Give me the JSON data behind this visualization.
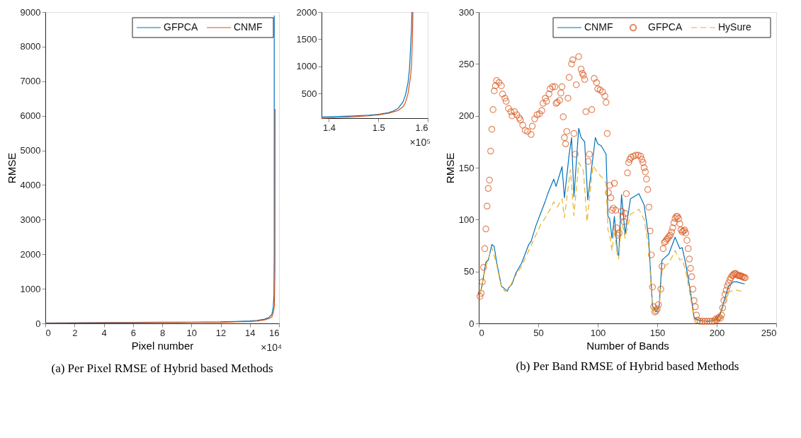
{
  "chart_data": [
    {
      "type": "line",
      "title": "(a) Per Pixel RMSE of Hybrid based Methods",
      "xlabel": "Pixel number",
      "ylabel": "RMSE",
      "xlim": [
        0,
        16
      ],
      "xticks": [
        0,
        2,
        4,
        6,
        8,
        10,
        12,
        14,
        16
      ],
      "ylim": [
        0,
        9000
      ],
      "yticks": [
        0,
        1000,
        2000,
        3000,
        4000,
        5000,
        6000,
        7000,
        8000,
        9000
      ],
      "annotations": [
        "×10⁴"
      ],
      "legend": "top right",
      "grid": false,
      "series": [
        {
          "name": "GFPCA",
          "color": "#0072bd",
          "x": [
            0,
            2,
            4,
            6,
            8,
            10,
            12,
            13,
            14,
            14.5,
            15,
            15.3,
            15.5,
            15.6,
            15.65,
            15.67,
            15.67
          ],
          "values": [
            15,
            20,
            25,
            28,
            32,
            36,
            42,
            55,
            70,
            85,
            120,
            170,
            250,
            450,
            800,
            2000,
            8900
          ]
        },
        {
          "name": "CNMF",
          "color": "#d95319",
          "x": [
            0,
            2,
            4,
            6,
            8,
            10,
            12,
            13,
            14,
            14.5,
            15,
            15.3,
            15.5,
            15.6,
            15.68,
            15.72,
            15.73
          ],
          "values": [
            5,
            10,
            14,
            18,
            22,
            26,
            30,
            42,
            55,
            70,
            100,
            140,
            180,
            300,
            500,
            1500,
            6200
          ]
        }
      ]
    },
    {
      "type": "line",
      "xlim": [
        1.385,
        1.6
      ],
      "xticks": [
        1.4,
        1.5,
        1.6
      ],
      "ylim": [
        50,
        2000
      ],
      "yticks": [
        500,
        1000,
        1500,
        2000
      ],
      "annotations": [
        "×10⁵"
      ],
      "grid": false,
      "series": [
        {
          "color": "#0072bd",
          "x": [
            1.385,
            1.42,
            1.45,
            1.48,
            1.5,
            1.52,
            1.53,
            1.54,
            1.55,
            1.555,
            1.56,
            1.563,
            1.565,
            1.567,
            1.568
          ],
          "values": [
            70,
            80,
            90,
            105,
            120,
            150,
            180,
            230,
            350,
            480,
            700,
            950,
            1300,
            1700,
            2000
          ]
        },
        {
          "color": "#d95319",
          "x": [
            1.385,
            1.42,
            1.45,
            1.48,
            1.5,
            1.52,
            1.53,
            1.54,
            1.55,
            1.555,
            1.56,
            1.565,
            1.567,
            1.569,
            1.57
          ],
          "values": [
            50,
            60,
            75,
            95,
            110,
            140,
            165,
            190,
            260,
            340,
            500,
            800,
            1000,
            1500,
            2000
          ]
        }
      ]
    },
    {
      "type": "line",
      "title": "(b) Per Band RMSE of Hybrid based Methods",
      "xlabel": "Number of Bands",
      "ylabel": "RMSE",
      "xlim": [
        0,
        250
      ],
      "xticks": [
        0,
        50,
        100,
        150,
        200,
        250
      ],
      "ylim": [
        0,
        300
      ],
      "yticks": [
        0,
        50,
        100,
        150,
        200,
        250,
        300
      ],
      "legend": "top right",
      "grid": false,
      "series": [
        {
          "name": "CNMF",
          "color": "#0072bd",
          "line_style": "solid",
          "x": [
            1,
            3,
            6,
            8,
            11,
            13,
            15,
            19,
            22,
            24,
            25,
            28,
            31,
            36,
            42,
            44,
            48,
            52,
            56,
            58,
            63,
            65,
            66,
            70,
            72,
            76,
            78,
            80,
            84,
            86,
            89,
            91.6,
            98,
            100,
            103,
            107,
            108.6,
            110,
            112,
            114,
            116.7,
            117.6,
            120,
            123,
            127.5,
            134.6,
            139,
            142.7,
            144.5,
            146,
            149,
            151.7,
            154,
            156,
            159.8,
            165,
            169,
            171,
            174,
            178,
            181,
            185,
            192,
            199,
            203,
            206,
            210,
            214,
            217,
            220,
            223.5
          ],
          "values": [
            28,
            38,
            59,
            61,
            76,
            74,
            59,
            36,
            33,
            31,
            34,
            38,
            48,
            58,
            76,
            79,
            94,
            106,
            118,
            125,
            139,
            132,
            136,
            151,
            121,
            163,
            179,
            122,
            188,
            179,
            175,
            119,
            179,
            173,
            171,
            163,
            103,
            101,
            82,
            103,
            67,
            65,
            124,
            86,
            120,
            125,
            114,
            84,
            47,
            17,
            11,
            17,
            61,
            63,
            67,
            83,
            72,
            73,
            57,
            30,
            5,
            3,
            2,
            3,
            9,
            21,
            36,
            40,
            40,
            39,
            38
          ]
        },
        {
          "name": "GFPCA",
          "color": "#d95319",
          "type": "scatter",
          "marker": "circle",
          "x": [
            1,
            2,
            3,
            4,
            5,
            6,
            7,
            8,
            9,
            10,
            11,
            12,
            13,
            14,
            15,
            17,
            19,
            20,
            22,
            23,
            25,
            27,
            28,
            30,
            32,
            34,
            35,
            37,
            39,
            41,
            44,
            45,
            47,
            49,
            51,
            53,
            54,
            56,
            57,
            59,
            60,
            62,
            64,
            65,
            66,
            68,
            69,
            70,
            71,
            72,
            73,
            74,
            75,
            76,
            78,
            79,
            80,
            81,
            82,
            84,
            86,
            87,
            88,
            89,
            90,
            92,
            93,
            95,
            97,
            99,
            100,
            102,
            104,
            106,
            107,
            108,
            109,
            110,
            111,
            112,
            113,
            114,
            115,
            116,
            117,
            118,
            120,
            121,
            122,
            123,
            124,
            125,
            126,
            127,
            128,
            130,
            132,
            134,
            136,
            137,
            138,
            139,
            140,
            141,
            142,
            143,
            144,
            145,
            146,
            147,
            148,
            149,
            150,
            151,
            153,
            154,
            155,
            156,
            157,
            158,
            159,
            160,
            161,
            162,
            163,
            164,
            165,
            166,
            167,
            168,
            169,
            170,
            171,
            172,
            173,
            174,
            175,
            176,
            177,
            178,
            179,
            180,
            181,
            182,
            183,
            184,
            186,
            188,
            190,
            192,
            194,
            196,
            198,
            199,
            200,
            201,
            202,
            203,
            204,
            205,
            206,
            207,
            208,
            209,
            210,
            211,
            212,
            213,
            214,
            215,
            216,
            217,
            218,
            219,
            220,
            221,
            222,
            223,
            224
          ],
          "values": [
            26,
            29,
            40,
            54,
            72,
            91,
            113,
            130,
            138,
            166,
            187,
            206,
            224,
            229,
            234,
            232,
            229,
            221,
            217,
            214,
            207,
            204,
            200,
            204,
            201,
            198,
            196,
            191,
            186,
            185,
            182,
            190,
            197,
            201,
            202,
            205,
            212,
            217,
            214,
            221,
            226,
            228,
            228,
            212,
            213,
            215,
            222,
            228,
            199,
            179,
            173,
            185,
            217,
            237,
            250,
            254,
            183,
            163,
            230,
            257,
            245,
            241,
            239,
            235,
            204,
            156,
            163,
            206,
            236,
            232,
            226,
            225,
            223,
            219,
            213,
            183,
            126,
            133,
            121,
            109,
            111,
            135,
            109,
            92,
            85,
            87,
            108,
            103,
            98,
            106,
            125,
            145,
            155,
            158,
            160,
            161,
            162,
            162,
            161,
            158,
            155,
            150,
            146,
            139,
            129,
            112,
            89,
            66,
            35,
            16,
            11,
            12,
            14,
            18,
            33,
            55,
            72,
            78,
            79,
            81,
            82,
            84,
            85,
            88,
            92,
            97,
            101,
            103,
            103,
            101,
            96,
            90,
            88,
            89,
            90,
            87,
            80,
            72,
            62,
            53,
            45,
            33,
            22,
            16,
            8,
            3,
            2,
            2,
            2,
            2,
            2,
            2,
            2,
            4,
            3,
            5,
            6,
            5,
            8,
            15,
            22,
            28,
            32,
            36,
            39,
            42,
            44,
            46,
            47,
            48,
            48,
            47,
            46,
            46,
            46,
            45,
            45,
            44,
            44
          ]
        },
        {
          "name": "HySure",
          "color": "#edb120",
          "line_style": "dashed",
          "x": [
            1,
            6,
            11,
            15,
            19,
            22,
            25,
            31,
            36,
            42,
            48,
            52,
            56,
            60,
            63,
            66,
            70,
            72,
            77,
            80,
            84,
            88,
            91,
            96,
            100,
            104,
            107,
            108.6,
            110,
            112,
            114,
            116.7,
            117.6,
            120,
            123,
            127.5,
            134.6,
            139,
            142.7,
            144.5,
            146,
            149,
            151.7,
            154,
            156,
            159.8,
            165,
            169,
            171,
            174,
            178,
            181,
            185,
            192,
            199,
            203,
            206,
            210,
            214,
            217,
            220,
            222
          ],
          "values": [
            28,
            55,
            73,
            57,
            35,
            31,
            33,
            46,
            55,
            70,
            85,
            95,
            102,
            110,
            117,
            112,
            120,
            102,
            148,
            104,
            155,
            147,
            98,
            152,
            145,
            140,
            135,
            90,
            86,
            70,
            90,
            64,
            62,
            100,
            82,
            105,
            110,
            100,
            75,
            42,
            15,
            10,
            15,
            50,
            55,
            58,
            70,
            61,
            62,
            50,
            25,
            4,
            2,
            2,
            2,
            7,
            18,
            30,
            32,
            32,
            31,
            32
          ]
        }
      ]
    }
  ]
}
